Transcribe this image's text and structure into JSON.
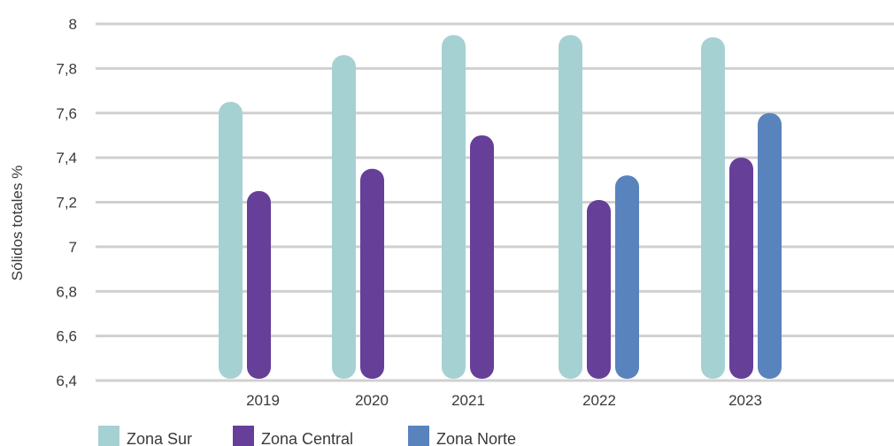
{
  "chart_data": {
    "type": "bar",
    "title": "",
    "xlabel": "",
    "ylabel": "Sólidos totales %",
    "ylim": [
      6.4,
      8
    ],
    "yticks": [
      "6,4",
      "6,6",
      "6,8",
      "7",
      "7,2",
      "7,4",
      "7,6",
      "7,8",
      "8"
    ],
    "categories": [
      "2019",
      "2020",
      "2021",
      "2022",
      "2023"
    ],
    "grid": true,
    "legend_position": "bottom-left",
    "series": [
      {
        "name": "Zona Sur",
        "color": "#a6d1d3",
        "values": [
          7.65,
          7.86,
          7.95,
          7.95,
          7.94
        ]
      },
      {
        "name": "Zona Central",
        "color": "#663f99",
        "values": [
          7.25,
          7.35,
          7.5,
          7.21,
          7.4
        ]
      },
      {
        "name": "Zona Norte",
        "color": "#5983bd",
        "values": [
          null,
          null,
          null,
          7.32,
          7.6
        ]
      }
    ]
  }
}
